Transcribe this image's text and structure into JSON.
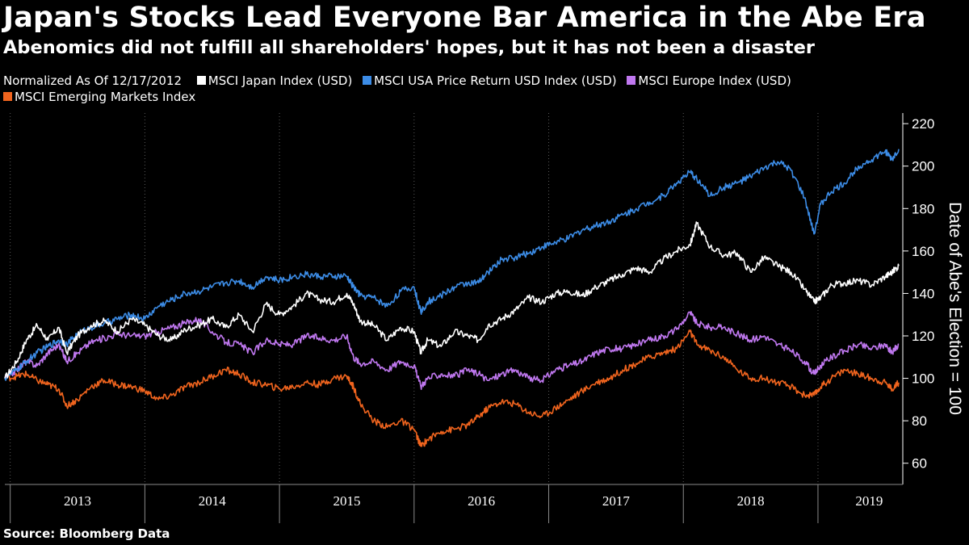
{
  "header": {
    "title": "Japan's Stocks Lead Everyone Bar America in the Abe Era",
    "subtitle": "Abenomics did not fulfill all shareholders' hopes, but it has not been a disaster"
  },
  "legend": {
    "note": "Normalized As Of 12/17/2012"
  },
  "footer": {
    "source": "Source:  Bloomberg Data"
  },
  "chart_data": {
    "type": "line",
    "title": "Japan's Stocks Lead Everyone Bar America in the Abe Era",
    "ylabel": "Date of Abe's Election = 100",
    "xlabel": "",
    "ylim": [
      50,
      225
    ],
    "yticks": [
      60,
      80,
      100,
      120,
      140,
      160,
      180,
      200,
      220
    ],
    "xlim": [
      2012.96,
      2019.63
    ],
    "year_labels": [
      {
        "label": "2013",
        "x": 2013.5
      },
      {
        "label": "2014",
        "x": 2014.5
      },
      {
        "label": "2015",
        "x": 2015.5
      },
      {
        "label": "2016",
        "x": 2016.5
      },
      {
        "label": "2017",
        "x": 2017.5
      },
      {
        "label": "2018",
        "x": 2018.5
      },
      {
        "label": "2019",
        "x": 2019.38
      }
    ],
    "year_boundaries": [
      2013,
      2014,
      2015,
      2016,
      2017,
      2018,
      2019
    ],
    "grid": true,
    "series": [
      {
        "name": "MSCI Japan Index (USD)",
        "color": "#ffffff",
        "x": [
          2012.96,
          2013.05,
          2013.12,
          2013.2,
          2013.28,
          2013.36,
          2013.42,
          2013.5,
          2013.6,
          2013.7,
          2013.8,
          2013.9,
          2014.0,
          2014.1,
          2014.2,
          2014.3,
          2014.4,
          2014.5,
          2014.6,
          2014.7,
          2014.8,
          2014.9,
          2015.0,
          2015.1,
          2015.2,
          2015.3,
          2015.4,
          2015.5,
          2015.55,
          2015.6,
          2015.7,
          2015.8,
          2015.9,
          2016.0,
          2016.05,
          2016.1,
          2016.2,
          2016.3,
          2016.4,
          2016.48,
          2016.55,
          2016.65,
          2016.75,
          2016.85,
          2016.95,
          2017.05,
          2017.15,
          2017.25,
          2017.35,
          2017.45,
          2017.55,
          2017.65,
          2017.75,
          2017.85,
          2017.95,
          2018.05,
          2018.1,
          2018.2,
          2018.3,
          2018.4,
          2018.5,
          2018.6,
          2018.7,
          2018.8,
          2018.9,
          2018.97,
          2019.02,
          2019.1,
          2019.2,
          2019.3,
          2019.4,
          2019.5,
          2019.55,
          2019.6
        ],
        "values": [
          100,
          108,
          118,
          125,
          118,
          124,
          112,
          120,
          125,
          127,
          122,
          128,
          125,
          120,
          118,
          123,
          125,
          128,
          124,
          130,
          122,
          135,
          130,
          134,
          140,
          137,
          136,
          140,
          135,
          127,
          125,
          118,
          124,
          122,
          112,
          118,
          115,
          122,
          120,
          118,
          125,
          128,
          132,
          138,
          136,
          140,
          141,
          139,
          143,
          146,
          149,
          152,
          150,
          156,
          160,
          163,
          173,
          162,
          158,
          159,
          150,
          157,
          153,
          150,
          142,
          136,
          138,
          144,
          145,
          146,
          144,
          148,
          150,
          153
        ]
      },
      {
        "name": "MSCI USA Price Return USD Index (USD)",
        "color": "#3c8ce6",
        "x": [
          2012.96,
          2013.05,
          2013.12,
          2013.2,
          2013.28,
          2013.36,
          2013.42,
          2013.5,
          2013.6,
          2013.7,
          2013.8,
          2013.9,
          2014.0,
          2014.1,
          2014.2,
          2014.3,
          2014.4,
          2014.5,
          2014.6,
          2014.7,
          2014.8,
          2014.9,
          2015.0,
          2015.1,
          2015.2,
          2015.3,
          2015.4,
          2015.5,
          2015.55,
          2015.6,
          2015.7,
          2015.8,
          2015.9,
          2016.0,
          2016.05,
          2016.1,
          2016.2,
          2016.3,
          2016.4,
          2016.48,
          2016.55,
          2016.65,
          2016.75,
          2016.85,
          2016.95,
          2017.05,
          2017.15,
          2017.25,
          2017.35,
          2017.45,
          2017.55,
          2017.65,
          2017.75,
          2017.85,
          2017.95,
          2018.05,
          2018.1,
          2018.2,
          2018.3,
          2018.4,
          2018.5,
          2018.6,
          2018.7,
          2018.8,
          2018.9,
          2018.97,
          2019.02,
          2019.1,
          2019.2,
          2019.3,
          2019.4,
          2019.5,
          2019.55,
          2019.6
        ],
        "values": [
          100,
          104,
          108,
          112,
          115,
          118,
          116,
          121,
          124,
          126,
          128,
          130,
          128,
          134,
          137,
          140,
          141,
          143,
          145,
          146,
          143,
          148,
          146,
          148,
          149,
          148,
          148,
          148,
          143,
          139,
          138,
          134,
          141,
          143,
          131,
          136,
          139,
          143,
          145,
          145,
          150,
          156,
          157,
          159,
          162,
          164,
          166,
          170,
          172,
          174,
          177,
          180,
          183,
          186,
          192,
          197,
          194,
          186,
          190,
          192,
          195,
          199,
          202,
          198,
          185,
          168,
          182,
          188,
          192,
          200,
          203,
          207,
          203,
          208
        ]
      },
      {
        "name": "MSCI Europe Index (USD)",
        "color": "#c078f0",
        "x": [
          2012.96,
          2013.05,
          2013.12,
          2013.2,
          2013.28,
          2013.36,
          2013.42,
          2013.5,
          2013.6,
          2013.7,
          2013.8,
          2013.9,
          2014.0,
          2014.1,
          2014.2,
          2014.3,
          2014.4,
          2014.5,
          2014.6,
          2014.7,
          2014.8,
          2014.9,
          2015.0,
          2015.1,
          2015.2,
          2015.3,
          2015.4,
          2015.5,
          2015.55,
          2015.6,
          2015.7,
          2015.8,
          2015.9,
          2016.0,
          2016.05,
          2016.1,
          2016.2,
          2016.3,
          2016.4,
          2016.48,
          2016.55,
          2016.65,
          2016.75,
          2016.85,
          2016.95,
          2017.05,
          2017.15,
          2017.25,
          2017.35,
          2017.45,
          2017.55,
          2017.65,
          2017.75,
          2017.85,
          2017.95,
          2018.05,
          2018.1,
          2018.2,
          2018.3,
          2018.4,
          2018.5,
          2018.6,
          2018.7,
          2018.8,
          2018.9,
          2018.97,
          2019.02,
          2019.1,
          2019.2,
          2019.3,
          2019.4,
          2019.5,
          2019.55,
          2019.6
        ],
        "values": [
          100,
          104,
          108,
          106,
          112,
          116,
          108,
          112,
          117,
          119,
          121,
          120,
          120,
          122,
          124,
          126,
          128,
          122,
          117,
          116,
          112,
          118,
          116,
          116,
          120,
          119,
          118,
          120,
          110,
          107,
          108,
          104,
          108,
          106,
          96,
          100,
          102,
          101,
          104,
          102,
          99,
          102,
          104,
          100,
          99,
          104,
          106,
          108,
          112,
          114,
          114,
          116,
          118,
          120,
          123,
          131,
          126,
          124,
          124,
          121,
          118,
          120,
          116,
          113,
          108,
          102,
          106,
          110,
          113,
          116,
          114,
          116,
          112,
          116
        ]
      },
      {
        "name": "MSCI Emerging Markets Index",
        "color": "#f0641e",
        "x": [
          2012.96,
          2013.05,
          2013.12,
          2013.2,
          2013.28,
          2013.36,
          2013.42,
          2013.5,
          2013.6,
          2013.7,
          2013.8,
          2013.9,
          2014.0,
          2014.1,
          2014.2,
          2014.3,
          2014.4,
          2014.5,
          2014.6,
          2014.7,
          2014.8,
          2014.9,
          2015.0,
          2015.1,
          2015.2,
          2015.3,
          2015.4,
          2015.5,
          2015.55,
          2015.6,
          2015.7,
          2015.8,
          2015.9,
          2016.0,
          2016.05,
          2016.1,
          2016.2,
          2016.3,
          2016.4,
          2016.48,
          2016.55,
          2016.65,
          2016.75,
          2016.85,
          2016.95,
          2017.05,
          2017.15,
          2017.25,
          2017.35,
          2017.45,
          2017.55,
          2017.65,
          2017.75,
          2017.85,
          2017.95,
          2018.05,
          2018.1,
          2018.2,
          2018.3,
          2018.4,
          2018.5,
          2018.6,
          2018.7,
          2018.8,
          2018.9,
          2018.97,
          2019.02,
          2019.1,
          2019.2,
          2019.3,
          2019.4,
          2019.5,
          2019.55,
          2019.6
        ],
        "values": [
          100,
          101,
          102,
          99,
          97,
          95,
          87,
          90,
          96,
          99,
          97,
          96,
          94,
          90,
          92,
          96,
          98,
          101,
          104,
          102,
          98,
          97,
          95,
          96,
          98,
          97,
          100,
          101,
          96,
          88,
          80,
          77,
          80,
          76,
          68,
          71,
          75,
          76,
          78,
          82,
          86,
          89,
          88,
          84,
          82,
          86,
          90,
          94,
          98,
          100,
          104,
          107,
          110,
          112,
          114,
          122,
          116,
          113,
          110,
          104,
          100,
          100,
          98,
          96,
          92,
          92,
          96,
          100,
          104,
          102,
          100,
          98,
          95,
          98
        ]
      }
    ]
  }
}
